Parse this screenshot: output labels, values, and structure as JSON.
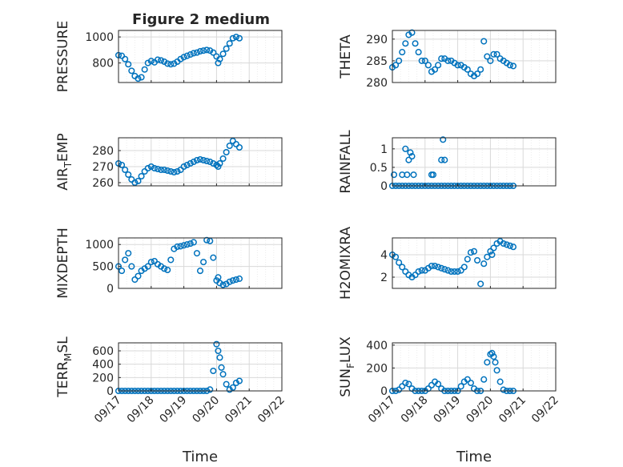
{
  "figure": {
    "title": "Figure 2 medium"
  },
  "colors": {
    "marker": "#0072bd",
    "grid": "#d9d9d9",
    "axis": "#262626"
  },
  "chart_data": [
    {
      "type": "scatter",
      "ylabel": "PRESSURE",
      "yticks": [
        800,
        1000
      ],
      "ylim": [
        650,
        1050
      ],
      "xlim": [
        "09/17",
        "09/22"
      ],
      "xticks": [
        "09/17",
        "09/18",
        "09/19",
        "09/20",
        "09/21",
        "09/22"
      ],
      "xtick_labels_shown": false,
      "grid": true,
      "points_x_days": [
        0,
        0.1,
        0.2,
        0.3,
        0.4,
        0.5,
        0.6,
        0.7,
        0.8,
        0.9,
        1.0,
        1.1,
        1.2,
        1.3,
        1.4,
        1.5,
        1.6,
        1.7,
        1.8,
        1.9,
        2.0,
        2.1,
        2.2,
        2.3,
        2.4,
        2.5,
        2.6,
        2.7,
        2.8,
        2.9,
        3.0,
        3.05,
        3.1,
        3.2,
        3.3,
        3.4,
        3.5,
        3.6,
        3.7
      ],
      "points_y": [
        860,
        855,
        830,
        790,
        740,
        700,
        680,
        690,
        750,
        800,
        815,
        805,
        825,
        820,
        810,
        795,
        790,
        795,
        810,
        830,
        845,
        855,
        865,
        875,
        880,
        890,
        895,
        900,
        895,
        880,
        850,
        800,
        830,
        870,
        910,
        950,
        990,
        1000,
        990
      ]
    },
    {
      "type": "scatter",
      "ylabel": "THETA",
      "yticks": [
        280,
        285,
        290
      ],
      "ylim": [
        280,
        292
      ],
      "xlim": [
        "09/17",
        "09/22"
      ],
      "xtick_labels_shown": false,
      "grid": true,
      "points_x_days": [
        0,
        0.1,
        0.2,
        0.3,
        0.4,
        0.5,
        0.6,
        0.7,
        0.8,
        0.9,
        1.0,
        1.1,
        1.2,
        1.3,
        1.4,
        1.5,
        1.6,
        1.7,
        1.8,
        1.9,
        2.0,
        2.1,
        2.2,
        2.3,
        2.4,
        2.5,
        2.6,
        2.7,
        2.8,
        2.9,
        3.0,
        3.1,
        3.2,
        3.3,
        3.4,
        3.5,
        3.6,
        3.7
      ],
      "points_y": [
        283.5,
        284,
        285,
        287,
        289,
        291,
        291.5,
        289,
        287,
        285,
        285,
        284,
        282.5,
        283,
        284,
        285.5,
        285.5,
        285,
        285,
        284.5,
        284,
        284,
        283.5,
        283,
        282,
        281.5,
        282,
        283,
        289.5,
        286,
        285,
        286.5,
        286.5,
        285.5,
        285,
        284.5,
        284,
        283.8
      ]
    },
    {
      "type": "scatter",
      "ylabel": "AIR_TEMP",
      "yticks": [
        260,
        270,
        280
      ],
      "ylim": [
        258,
        288
      ],
      "xlim": [
        "09/17",
        "09/22"
      ],
      "xtick_labels_shown": false,
      "grid": true,
      "points_x_days": [
        0,
        0.1,
        0.2,
        0.3,
        0.4,
        0.5,
        0.6,
        0.7,
        0.8,
        0.9,
        1.0,
        1.1,
        1.2,
        1.3,
        1.4,
        1.5,
        1.6,
        1.7,
        1.8,
        1.9,
        2.0,
        2.1,
        2.2,
        2.3,
        2.4,
        2.5,
        2.6,
        2.7,
        2.8,
        2.9,
        3.0,
        3.05,
        3.1,
        3.2,
        3.3,
        3.4,
        3.5,
        3.6,
        3.7
      ],
      "points_y": [
        272,
        271,
        268,
        265,
        262,
        260,
        261,
        264,
        267,
        269,
        270,
        269,
        268.5,
        268,
        268,
        267.5,
        267,
        266.5,
        267,
        268,
        270,
        271,
        272,
        273,
        274,
        274.5,
        274,
        273.5,
        273,
        272,
        271,
        270,
        272,
        275,
        279,
        283,
        286,
        284,
        282
      ]
    },
    {
      "type": "scatter",
      "ylabel": "RAINFALL",
      "yticks": [
        0,
        0.5,
        1
      ],
      "ylim": [
        0,
        1.3
      ],
      "xlim": [
        "09/17",
        "09/22"
      ],
      "xtick_labels_shown": false,
      "grid": true,
      "points_x_days": [
        0,
        0.1,
        0.2,
        0.3,
        0.4,
        0.5,
        0.6,
        0.7,
        0.8,
        0.9,
        1.0,
        1.1,
        1.2,
        1.3,
        1.4,
        1.5,
        1.6,
        1.7,
        1.8,
        1.9,
        2.0,
        2.1,
        2.2,
        2.3,
        2.4,
        2.5,
        2.6,
        2.7,
        2.8,
        2.9,
        3.0,
        3.1,
        3.2,
        3.3,
        3.4,
        3.5,
        3.6,
        3.7,
        0.05,
        0.3,
        0.4,
        0.45,
        0.5,
        0.55,
        0.6,
        0.65,
        1.2,
        1.25,
        1.5,
        1.55,
        1.6
      ],
      "points_y": [
        0,
        0,
        0,
        0,
        0,
        0,
        0,
        0,
        0,
        0,
        0,
        0,
        0,
        0,
        0,
        0,
        0,
        0,
        0,
        0,
        0,
        0,
        0,
        0,
        0,
        0,
        0,
        0,
        0,
        0,
        0,
        0,
        0,
        0,
        0,
        0,
        0,
        0,
        0.3,
        0.3,
        1.0,
        0.3,
        0.7,
        0.9,
        0.8,
        0.3,
        0.3,
        0.3,
        0.7,
        1.25,
        0.7
      ]
    },
    {
      "type": "scatter",
      "ylabel": "MIXDEPTH",
      "yticks": [
        0,
        500,
        1000
      ],
      "ylim": [
        0,
        1150
      ],
      "xlim": [
        "09/17",
        "09/22"
      ],
      "xtick_labels_shown": false,
      "grid": true,
      "points_x_days": [
        0,
        0.1,
        0.2,
        0.3,
        0.4,
        0.5,
        0.6,
        0.7,
        0.8,
        0.9,
        1.0,
        1.1,
        1.2,
        1.3,
        1.4,
        1.5,
        1.6,
        1.7,
        1.8,
        1.9,
        2.0,
        2.1,
        2.2,
        2.3,
        2.4,
        2.5,
        2.6,
        2.7,
        2.8,
        2.9,
        3.0,
        3.05,
        3.1,
        3.2,
        3.3,
        3.4,
        3.5,
        3.6,
        3.7
      ],
      "points_y": [
        500,
        400,
        650,
        800,
        500,
        200,
        280,
        400,
        450,
        500,
        600,
        620,
        550,
        500,
        450,
        420,
        650,
        900,
        950,
        960,
        980,
        1000,
        1020,
        1050,
        800,
        400,
        600,
        1100,
        1080,
        700,
        180,
        250,
        120,
        80,
        100,
        150,
        180,
        200,
        220
      ]
    },
    {
      "type": "scatter",
      "ylabel": "H2OMIXRA",
      "yticks": [
        2,
        4
      ],
      "ylim": [
        1,
        5.5
      ],
      "xlim": [
        "09/17",
        "09/22"
      ],
      "xtick_labels_shown": false,
      "grid": true,
      "points_x_days": [
        0,
        0.1,
        0.2,
        0.3,
        0.4,
        0.5,
        0.6,
        0.7,
        0.8,
        0.9,
        1.0,
        1.1,
        1.2,
        1.3,
        1.4,
        1.5,
        1.6,
        1.7,
        1.8,
        1.9,
        2.0,
        2.1,
        2.2,
        2.3,
        2.4,
        2.5,
        2.6,
        2.7,
        2.8,
        2.9,
        3.0,
        3.05,
        3.1,
        3.2,
        3.3,
        3.4,
        3.5,
        3.6,
        3.7
      ],
      "points_y": [
        4,
        3.8,
        3.3,
        2.9,
        2.5,
        2.2,
        2.0,
        2.2,
        2.5,
        2.6,
        2.6,
        2.8,
        3.0,
        3.0,
        2.9,
        2.8,
        2.7,
        2.6,
        2.5,
        2.5,
        2.5,
        2.6,
        2.9,
        3.6,
        4.2,
        4.3,
        3.5,
        1.4,
        3.2,
        3.8,
        4.3,
        4.0,
        4.6,
        5.0,
        5.2,
        5.0,
        4.9,
        4.8,
        4.7
      ]
    },
    {
      "type": "scatter",
      "ylabel": "TERR_MSL",
      "yticks": [
        0,
        200,
        400,
        600
      ],
      "ylim": [
        0,
        720
      ],
      "xlim": [
        "09/17",
        "09/22"
      ],
      "xticks": [
        "09/17",
        "09/18",
        "09/19",
        "09/20",
        "09/21",
        "09/22"
      ],
      "xlabel": "Time",
      "grid": true,
      "points_x_days": [
        0,
        0.1,
        0.2,
        0.3,
        0.4,
        0.5,
        0.6,
        0.7,
        0.8,
        0.9,
        1.0,
        1.1,
        1.2,
        1.3,
        1.4,
        1.5,
        1.6,
        1.7,
        1.8,
        1.9,
        2.0,
        2.1,
        2.2,
        2.3,
        2.4,
        2.5,
        2.6,
        2.7,
        2.8,
        2.9,
        3.0,
        3.05,
        3.1,
        3.15,
        3.2,
        3.3,
        3.4,
        3.5,
        3.6,
        3.7
      ],
      "points_y": [
        0,
        0,
        0,
        0,
        0,
        0,
        0,
        0,
        0,
        0,
        0,
        0,
        0,
        0,
        0,
        0,
        0,
        0,
        0,
        0,
        0,
        0,
        0,
        0,
        0,
        0,
        0,
        0,
        20,
        300,
        700,
        600,
        500,
        350,
        250,
        100,
        20,
        50,
        120,
        150
      ]
    },
    {
      "type": "scatter",
      "ylabel": "SUN_FLUX",
      "yticks": [
        0,
        200,
        400
      ],
      "ylim": [
        0,
        420
      ],
      "xlim": [
        "09/17",
        "09/22"
      ],
      "xticks": [
        "09/17",
        "09/18",
        "09/19",
        "09/20",
        "09/21",
        "09/22"
      ],
      "xlabel": "Time",
      "grid": true,
      "points_x_days": [
        0,
        0.1,
        0.2,
        0.3,
        0.4,
        0.5,
        0.6,
        0.7,
        0.8,
        0.9,
        1.0,
        1.1,
        1.2,
        1.3,
        1.4,
        1.5,
        1.6,
        1.7,
        1.8,
        1.9,
        2.0,
        2.1,
        2.2,
        2.3,
        2.4,
        2.5,
        2.6,
        2.7,
        2.8,
        2.9,
        3.0,
        3.05,
        3.1,
        3.15,
        3.2,
        3.3,
        3.4,
        3.5,
        3.6,
        3.7
      ],
      "points_y": [
        0,
        0,
        10,
        40,
        70,
        60,
        20,
        0,
        0,
        0,
        0,
        20,
        50,
        80,
        60,
        20,
        0,
        0,
        0,
        0,
        0,
        40,
        80,
        100,
        70,
        20,
        0,
        0,
        100,
        250,
        320,
        330,
        300,
        250,
        180,
        80,
        10,
        0,
        0,
        0
      ]
    }
  ]
}
